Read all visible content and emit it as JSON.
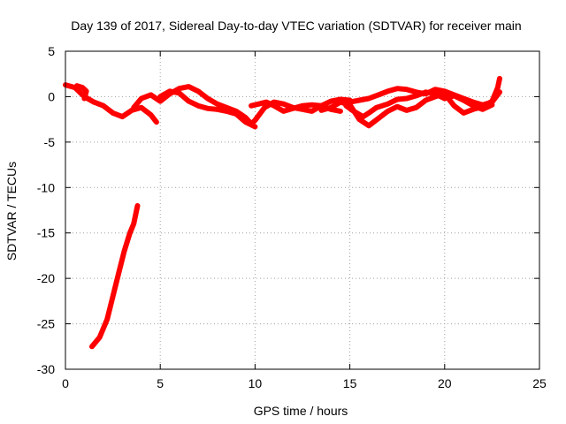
{
  "chart_data": {
    "type": "scatter",
    "title": "Day 139 of 2017, Sidereal Day-to-day VTEC variation (SDTVAR) for receiver main",
    "xlabel": "GPS time / hours",
    "ylabel": "SDTVAR / TECUs",
    "xlim": [
      0,
      25
    ],
    "ylim": [
      -30,
      5
    ],
    "xticks": [
      0,
      5,
      10,
      15,
      20,
      25
    ],
    "yticks": [
      5,
      0,
      -5,
      -10,
      -15,
      -20,
      -25,
      -30
    ],
    "grid": true,
    "series": [
      {
        "name": "main",
        "color": "#ff0000",
        "segments": [
          [
            [
              0.0,
              1.3
            ],
            [
              0.5,
              1.0
            ],
            [
              1.0,
              0.0
            ],
            [
              1.5,
              -0.6
            ],
            [
              2.0,
              -1.0
            ],
            [
              2.5,
              -1.8
            ],
            [
              3.0,
              -2.2
            ],
            [
              3.5,
              -1.5
            ],
            [
              4.0,
              -1.2
            ],
            [
              4.5,
              -2.0
            ],
            [
              4.8,
              -2.8
            ]
          ],
          [
            [
              0.6,
              1.2
            ],
            [
              0.9,
              1.0
            ],
            [
              1.1,
              0.6
            ],
            [
              1.0,
              -0.2
            ]
          ],
          [
            [
              3.6,
              -1.2
            ],
            [
              4.0,
              -0.2
            ],
            [
              4.5,
              0.2
            ],
            [
              5.0,
              -0.5
            ],
            [
              5.5,
              0.3
            ],
            [
              6.0,
              0.9
            ],
            [
              6.5,
              1.1
            ],
            [
              7.0,
              0.6
            ],
            [
              7.5,
              -0.2
            ],
            [
              8.0,
              -0.8
            ],
            [
              8.5,
              -1.2
            ],
            [
              9.0,
              -1.6
            ],
            [
              9.5,
              -2.3
            ],
            [
              9.8,
              -3.0
            ],
            [
              10.0,
              -2.6
            ],
            [
              10.5,
              -1.2
            ],
            [
              11.0,
              -0.6
            ],
            [
              11.5,
              -0.8
            ],
            [
              12.0,
              -1.2
            ],
            [
              12.5,
              -1.4
            ],
            [
              13.0,
              -1.6
            ],
            [
              13.5,
              -1.0
            ],
            [
              14.0,
              -0.5
            ],
            [
              14.5,
              -0.3
            ],
            [
              15.0,
              -0.4
            ]
          ],
          [
            [
              5.0,
              0.0
            ],
            [
              5.5,
              0.6
            ],
            [
              6.0,
              0.4
            ],
            [
              6.5,
              -0.5
            ],
            [
              7.0,
              -1.0
            ],
            [
              7.5,
              -1.3
            ],
            [
              8.0,
              -1.4
            ],
            [
              8.5,
              -1.6
            ],
            [
              9.0,
              -1.9
            ],
            [
              9.5,
              -2.8
            ],
            [
              10.0,
              -3.3
            ]
          ],
          [
            [
              9.8,
              -1.0
            ],
            [
              10.2,
              -0.8
            ],
            [
              10.6,
              -0.6
            ],
            [
              11.0,
              -1.0
            ],
            [
              11.5,
              -1.6
            ],
            [
              12.0,
              -1.3
            ],
            [
              12.5,
              -1.0
            ],
            [
              13.0,
              -0.9
            ],
            [
              13.5,
              -1.0
            ],
            [
              14.0,
              -1.4
            ],
            [
              14.5,
              -1.6
            ]
          ],
          [
            [
              13.5,
              -1.5
            ],
            [
              14.0,
              -1.2
            ],
            [
              14.5,
              -0.6
            ],
            [
              15.0,
              -0.9
            ],
            [
              15.5,
              -2.5
            ],
            [
              16.0,
              -3.2
            ],
            [
              16.5,
              -2.4
            ],
            [
              17.0,
              -1.6
            ],
            [
              17.5,
              -1.1
            ],
            [
              18.0,
              -1.5
            ],
            [
              18.5,
              -1.2
            ],
            [
              19.0,
              -0.4
            ],
            [
              19.5,
              0.0
            ],
            [
              20.0,
              0.3
            ],
            [
              20.5,
              -1.0
            ],
            [
              21.0,
              -1.8
            ],
            [
              21.5,
              -1.4
            ],
            [
              22.0,
              -1.1
            ],
            [
              22.5,
              -0.5
            ],
            [
              22.8,
              1.0
            ],
            [
              22.9,
              2.0
            ]
          ],
          [
            [
              15.0,
              -0.6
            ],
            [
              15.5,
              -0.4
            ],
            [
              16.0,
              -0.2
            ],
            [
              16.5,
              0.2
            ],
            [
              17.0,
              0.6
            ],
            [
              17.5,
              0.9
            ],
            [
              18.0,
              0.8
            ],
            [
              18.5,
              0.5
            ],
            [
              19.0,
              0.3
            ],
            [
              19.5,
              0.8
            ],
            [
              20.0,
              0.6
            ],
            [
              20.5,
              0.2
            ],
            [
              21.0,
              -0.2
            ],
            [
              21.5,
              -0.6
            ],
            [
              22.0,
              -0.9
            ],
            [
              22.5,
              -0.6
            ],
            [
              22.9,
              0.5
            ]
          ],
          [
            [
              14.8,
              -1.0
            ],
            [
              15.2,
              -1.6
            ],
            [
              15.7,
              -2.2
            ],
            [
              16.0,
              -1.8
            ],
            [
              16.4,
              -1.2
            ],
            [
              17.0,
              -0.8
            ],
            [
              17.5,
              -0.3
            ],
            [
              18.0,
              -0.2
            ],
            [
              18.5,
              0.1
            ],
            [
              19.0,
              0.5
            ],
            [
              19.5,
              0.3
            ],
            [
              20.0,
              -0.2
            ],
            [
              20.5,
              0.1
            ],
            [
              21.0,
              -0.4
            ],
            [
              21.5,
              -1.0
            ],
            [
              22.0,
              -1.4
            ],
            [
              22.5,
              -0.9
            ]
          ],
          [
            [
              1.4,
              -27.5
            ],
            [
              1.8,
              -26.5
            ],
            [
              2.2,
              -24.5
            ],
            [
              2.5,
              -22.0
            ],
            [
              2.8,
              -19.5
            ],
            [
              3.1,
              -17.0
            ],
            [
              3.4,
              -15.0
            ],
            [
              3.6,
              -14.0
            ],
            [
              3.8,
              -12.0
            ]
          ]
        ]
      }
    ]
  }
}
